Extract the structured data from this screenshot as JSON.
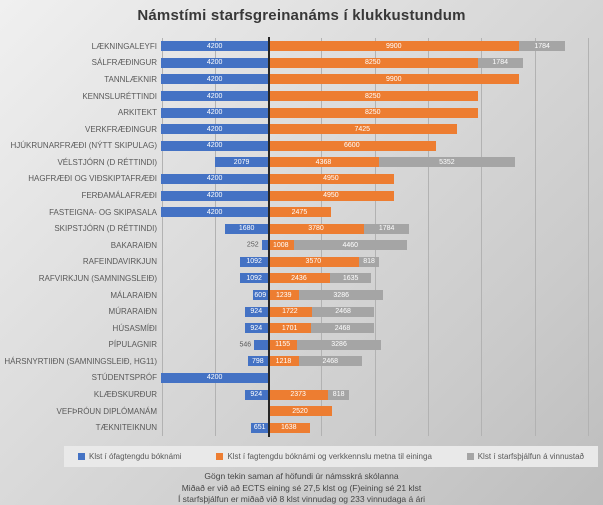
{
  "title": "Námstími starfsgreinanáms í klukkustundum",
  "chart_data": {
    "type": "bar",
    "orientation": "horizontal",
    "stacked": true,
    "diverging": true,
    "title": "Námstími starfsgreinanáms í klukkustundum",
    "xlabel": "",
    "ylabel": "",
    "axis": {
      "unit": "klst",
      "left_max": 4200,
      "right_max": 12600,
      "gridline_step": 2100,
      "gridline_values": [
        -4200,
        -2100,
        2100,
        4200,
        6300,
        8400,
        10500,
        12600
      ],
      "tick_labels_visible": false,
      "grid": true
    },
    "categories": [
      "LÆKNINGALEYFI",
      "SÁLFRÆÐINGUR",
      "TANNLÆKNIR",
      "KENNSLURÉTTINDI",
      "ARKITEKT",
      "VERKFRÆÐINGUR",
      "HJÚKRUNARFRÆÐI (NÝTT SKIPULAG)",
      "VÉLSTJÓRN (D RÉTTINDI)",
      "HAGFRÆÐI OG VIÐSKIPTAFRÆÐI",
      "FERÐAMÁLAFRÆÐI",
      "FASTEIGNA- OG SKIPASALA",
      "SKIPSTJÓRN (D RÉTTINDI)",
      "BAKARAIÐN",
      "RAFEINDAVIRKJUN",
      "RAFVIRKJUN (SAMNINGSLEIÐ)",
      "MÁLARAIÐN",
      "MÚRARAIÐN",
      "HÚSASMÍÐI",
      "PÍPULAGNIR",
      "HÁRSNYRTIIÐN (SAMNINGSLEIÐ, HG11)",
      "STÚDENTSPRÓF",
      "KLÆÐSKURÐUR",
      "VEFÞRÓUN DIPLÓMANÁM",
      "TÆKNITEIKNUN"
    ],
    "series": [
      {
        "name": "Klst í ófagtengdu bóknámi",
        "color": "#4472c4",
        "direction": "left",
        "values": [
          4200,
          4200,
          4200,
          4200,
          4200,
          4200,
          4200,
          2079,
          4200,
          4200,
          4200,
          1680,
          252,
          1092,
          1092,
          609,
          924,
          924,
          546,
          798,
          4200,
          924,
          null,
          651
        ]
      },
      {
        "name": "Klst í fagtengdu bóknámi og verkkennslu metna til eininga",
        "color": "#ed7d31",
        "direction": "right",
        "values": [
          9900,
          8250,
          9900,
          8250,
          8250,
          7425,
          6600,
          4368,
          4950,
          4950,
          2475,
          3780,
          1008,
          3570,
          2436,
          1239,
          1722,
          1701,
          1155,
          1218,
          null,
          2373,
          2520,
          1638
        ]
      },
      {
        "name": "Klst í starfsþjálfun á vinnustað",
        "color": "#a5a5a5",
        "direction": "right",
        "values": [
          1784,
          1784,
          null,
          null,
          null,
          null,
          null,
          5352,
          null,
          null,
          null,
          1784,
          4460,
          818,
          1635,
          3286,
          2468,
          2468,
          3286,
          2468,
          null,
          818,
          null,
          null
        ]
      }
    ],
    "legend_position": "bottom"
  },
  "legend": {
    "items": [
      {
        "label": "Klst í ófagtengdu bóknámi",
        "color": "#4472c4"
      },
      {
        "label": "Klst í fagtengdu bóknámi og verkkennslu metna til eininga",
        "color": "#ed7d31"
      },
      {
        "label": "Klst í starfsþjálfun á vinnustað",
        "color": "#a5a5a5"
      }
    ]
  },
  "footnotes": [
    "Gögn tekin saman af höfundi úr námsskrá skólanna",
    "Miðað er við að ECTS eining sé 27,5 klst og (F)eining sé 21 klst",
    "Í starfsþjálfun er miðað við 8 klst vinnudag og 233 vinnudaga á ári"
  ]
}
